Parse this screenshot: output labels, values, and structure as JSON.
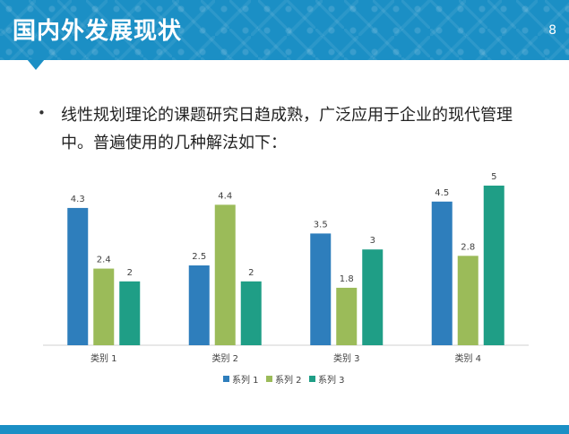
{
  "slide": {
    "title": "国内外发展现状",
    "page_number": "8",
    "bullet_symbol": "•",
    "bullet_text": "线性规划理论的课题研究日趋成熟，广泛应用于企业的现代管理中。普遍使用的几种解法如下："
  },
  "colors": {
    "header": "#1b8fc5",
    "series": [
      "#2e7ebc",
      "#9bbb59",
      "#1f9e86"
    ]
  },
  "chart_data": {
    "type": "bar",
    "categories": [
      "类别 1",
      "类别 2",
      "类别 3",
      "类别 4"
    ],
    "series": [
      {
        "name": "系列 1",
        "values": [
          4.3,
          2.5,
          3.5,
          4.5
        ]
      },
      {
        "name": "系列 2",
        "values": [
          2.4,
          4.4,
          1.8,
          2.8
        ]
      },
      {
        "name": "系列 3",
        "values": [
          2,
          2,
          3,
          5
        ]
      }
    ],
    "ylim": [
      0,
      5
    ],
    "grid": false,
    "legend": "bottom",
    "data_labels": true
  }
}
